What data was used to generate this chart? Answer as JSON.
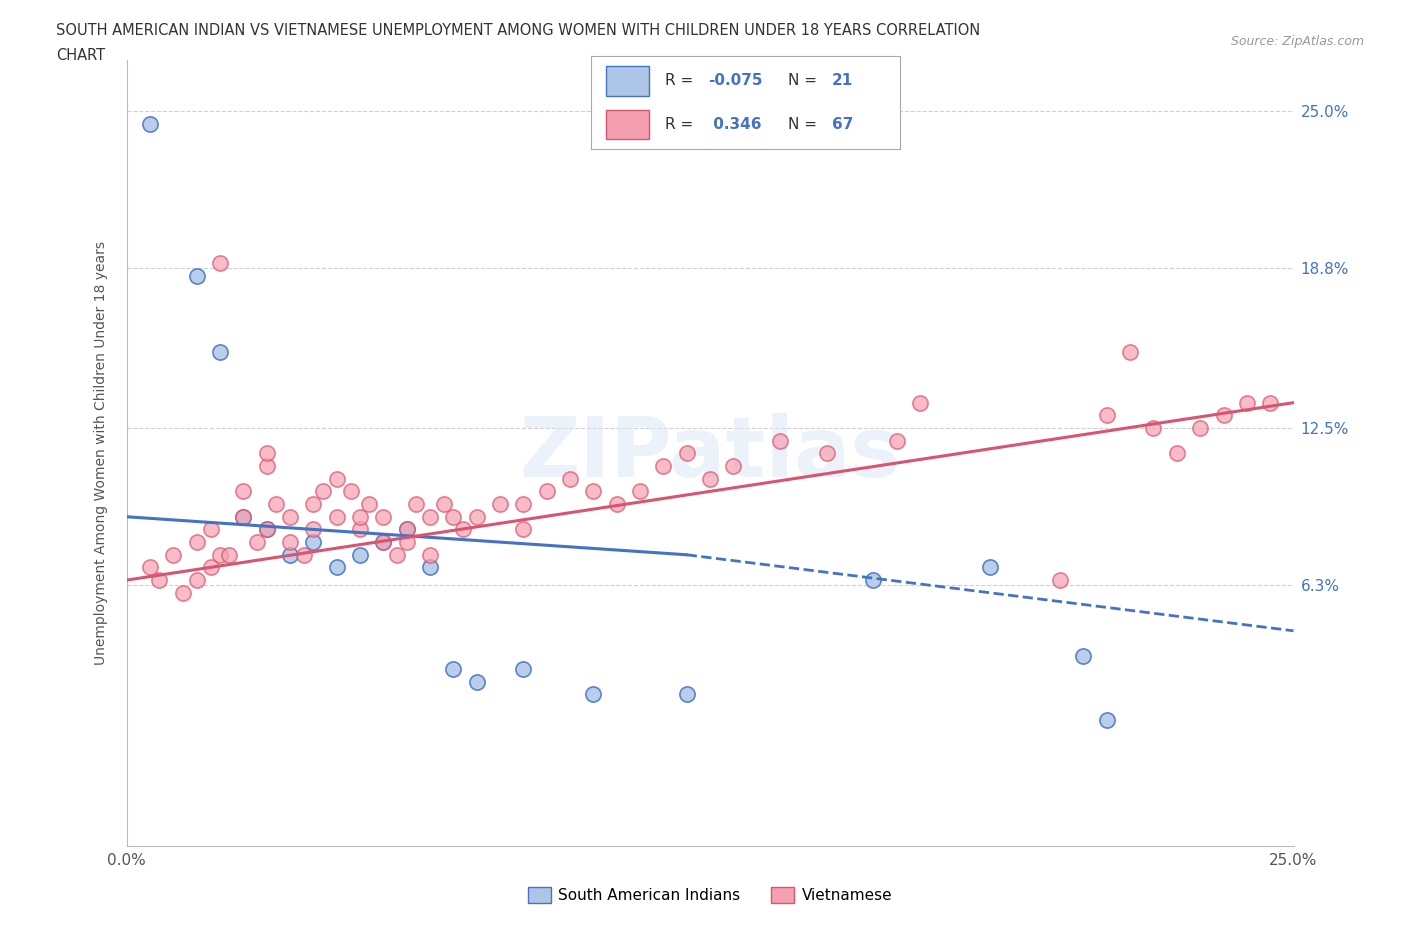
{
  "title_line1": "SOUTH AMERICAN INDIAN VS VIETNAMESE UNEMPLOYMENT AMONG WOMEN WITH CHILDREN UNDER 18 YEARS CORRELATION",
  "title_line2": "CHART",
  "source": "Source: ZipAtlas.com",
  "ylabel": "Unemployment Among Women with Children Under 18 years",
  "x_min": 0,
  "x_max": 25,
  "y_min": -4,
  "y_max": 27,
  "y_tick_labels": [
    "6.3%",
    "12.5%",
    "18.8%",
    "25.0%"
  ],
  "y_tick_values": [
    6.3,
    12.5,
    18.8,
    25.0
  ],
  "color_blue": "#adc6e8",
  "color_blue_line": "#4472c4",
  "color_pink": "#f4a0b0",
  "color_pink_line": "#d9546e",
  "blue_scatter": [
    [
      0.5,
      24.5
    ],
    [
      1.5,
      18.5
    ],
    [
      2.0,
      15.5
    ],
    [
      2.5,
      9.0
    ],
    [
      3.0,
      8.5
    ],
    [
      3.5,
      7.5
    ],
    [
      4.0,
      8.0
    ],
    [
      4.5,
      7.0
    ],
    [
      5.0,
      7.5
    ],
    [
      5.5,
      8.0
    ],
    [
      6.0,
      8.5
    ],
    [
      6.5,
      7.0
    ],
    [
      7.0,
      3.0
    ],
    [
      7.5,
      2.5
    ],
    [
      8.5,
      3.0
    ],
    [
      10.0,
      2.0
    ],
    [
      12.0,
      2.0
    ],
    [
      16.0,
      6.5
    ],
    [
      18.5,
      7.0
    ],
    [
      20.5,
      3.5
    ],
    [
      21.0,
      1.0
    ]
  ],
  "pink_scatter": [
    [
      0.5,
      7.0
    ],
    [
      0.7,
      6.5
    ],
    [
      1.0,
      7.5
    ],
    [
      1.2,
      6.0
    ],
    [
      1.5,
      6.5
    ],
    [
      1.5,
      8.0
    ],
    [
      1.8,
      8.5
    ],
    [
      1.8,
      7.0
    ],
    [
      2.0,
      7.5
    ],
    [
      2.0,
      19.0
    ],
    [
      2.2,
      7.5
    ],
    [
      2.5,
      9.0
    ],
    [
      2.5,
      10.0
    ],
    [
      2.8,
      8.0
    ],
    [
      3.0,
      8.5
    ],
    [
      3.0,
      11.0
    ],
    [
      3.0,
      11.5
    ],
    [
      3.2,
      9.5
    ],
    [
      3.5,
      9.0
    ],
    [
      3.5,
      8.0
    ],
    [
      3.8,
      7.5
    ],
    [
      4.0,
      9.5
    ],
    [
      4.0,
      8.5
    ],
    [
      4.2,
      10.0
    ],
    [
      4.5,
      10.5
    ],
    [
      4.5,
      9.0
    ],
    [
      4.8,
      10.0
    ],
    [
      5.0,
      8.5
    ],
    [
      5.0,
      9.0
    ],
    [
      5.2,
      9.5
    ],
    [
      5.5,
      9.0
    ],
    [
      5.5,
      8.0
    ],
    [
      5.8,
      7.5
    ],
    [
      6.0,
      8.0
    ],
    [
      6.0,
      8.5
    ],
    [
      6.2,
      9.5
    ],
    [
      6.5,
      9.0
    ],
    [
      6.5,
      7.5
    ],
    [
      6.8,
      9.5
    ],
    [
      7.0,
      9.0
    ],
    [
      7.2,
      8.5
    ],
    [
      7.5,
      9.0
    ],
    [
      8.0,
      9.5
    ],
    [
      8.5,
      9.5
    ],
    [
      8.5,
      8.5
    ],
    [
      9.0,
      10.0
    ],
    [
      9.5,
      10.5
    ],
    [
      10.0,
      10.0
    ],
    [
      10.5,
      9.5
    ],
    [
      11.0,
      10.0
    ],
    [
      11.5,
      11.0
    ],
    [
      12.0,
      11.5
    ],
    [
      12.5,
      10.5
    ],
    [
      13.0,
      11.0
    ],
    [
      14.0,
      12.0
    ],
    [
      15.0,
      11.5
    ],
    [
      16.5,
      12.0
    ],
    [
      17.0,
      13.5
    ],
    [
      20.0,
      6.5
    ],
    [
      21.0,
      13.0
    ],
    [
      21.5,
      15.5
    ],
    [
      22.0,
      12.5
    ],
    [
      22.5,
      11.5
    ],
    [
      23.0,
      12.5
    ],
    [
      23.5,
      13.0
    ],
    [
      24.0,
      13.5
    ],
    [
      24.5,
      13.5
    ]
  ],
  "blue_solid_line_x": [
    0,
    12
  ],
  "blue_solid_line_y": [
    9.0,
    7.5
  ],
  "blue_dash_line_x": [
    12,
    25
  ],
  "blue_dash_line_y": [
    7.5,
    4.5
  ],
  "pink_line_x": [
    0,
    25
  ],
  "pink_line_y": [
    6.5,
    13.5
  ]
}
